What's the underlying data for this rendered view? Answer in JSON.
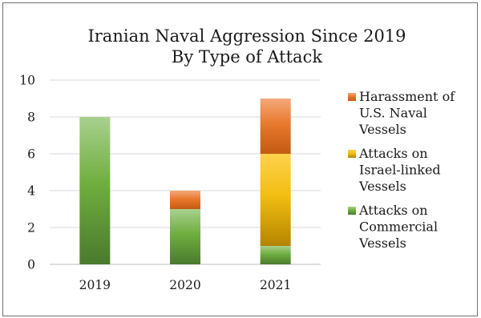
{
  "chart_data": {
    "type": "bar",
    "stacked": true,
    "title": "Iranian Naval Aggression Since 2019",
    "subtitle": "By Type of Attack",
    "categories": [
      "2019",
      "2020",
      "2021"
    ],
    "ylim": [
      0,
      10
    ],
    "yticks": [
      0,
      2,
      4,
      6,
      8,
      10
    ],
    "grid": true,
    "legend_position": "right",
    "series": [
      {
        "name": "Attacks on Commercial Vessels",
        "legend_lines": [
          "Attacks on",
          "Commercial",
          "Vessels"
        ],
        "values": [
          8,
          3,
          1
        ],
        "color_dark": "#4a7a2e",
        "color_light": "#a9d08e"
      },
      {
        "name": "Attacks on Israel-linked Vessels",
        "legend_lines": [
          "Attacks on",
          "Israel-linked",
          "Vessels"
        ],
        "values": [
          0,
          0,
          5
        ],
        "color_dark": "#b58500",
        "color_light": "#ffd24d"
      },
      {
        "name": "Harassment of U.S. Naval Vessels",
        "legend_lines": [
          "Harassment  of",
          "U.S. Naval",
          "Vessels"
        ],
        "values": [
          0,
          1,
          3
        ],
        "color_dark": "#c45a12",
        "color_light": "#f4a97a"
      }
    ]
  }
}
